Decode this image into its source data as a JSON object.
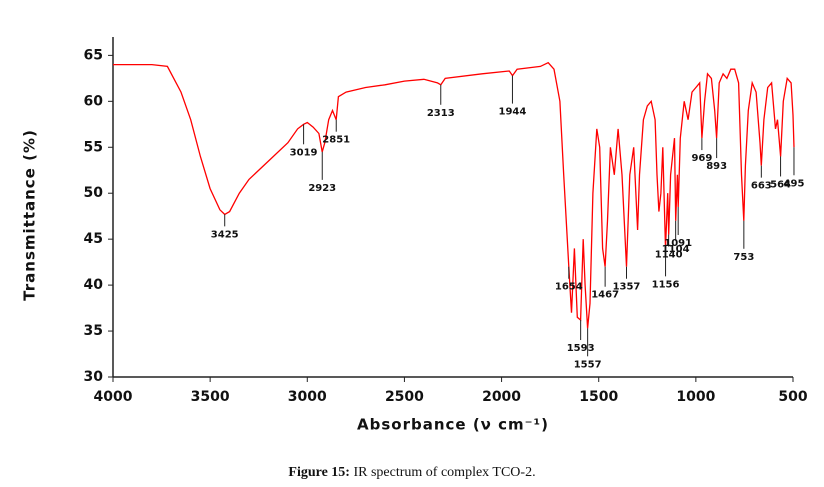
{
  "chart_data": {
    "type": "line",
    "xlabel": "Absorbance (ν cm⁻¹)",
    "ylabel": "Transmittance (%)",
    "caption": {
      "label": "Figure 15:",
      "text": "IR spectrum of complex TCO-2."
    },
    "x": [
      4000,
      3800,
      3720,
      3650,
      3600,
      3550,
      3500,
      3450,
      3425,
      3400,
      3350,
      3300,
      3200,
      3100,
      3050,
      3019,
      3000,
      2970,
      2940,
      2923,
      2910,
      2890,
      2870,
      2851,
      2840,
      2800,
      2700,
      2600,
      2500,
      2400,
      2330,
      2313,
      2290,
      2100,
      1960,
      1944,
      1920,
      1800,
      1760,
      1730,
      1700,
      1680,
      1654,
      1640,
      1625,
      1610,
      1593,
      1580,
      1570,
      1557,
      1545,
      1530,
      1510,
      1495,
      1480,
      1467,
      1455,
      1440,
      1420,
      1400,
      1380,
      1357,
      1340,
      1320,
      1300,
      1290,
      1270,
      1250,
      1230,
      1210,
      1200,
      1190,
      1180,
      1170,
      1156,
      1145,
      1140,
      1130,
      1110,
      1104,
      1095,
      1091,
      1080,
      1060,
      1040,
      1020,
      1000,
      980,
      969,
      955,
      940,
      920,
      903,
      893,
      880,
      860,
      840,
      820,
      800,
      780,
      765,
      753,
      745,
      730,
      710,
      690,
      670,
      663,
      650,
      630,
      610,
      590,
      580,
      564,
      550,
      530,
      510,
      500,
      495
    ],
    "series": [
      {
        "color": "#ff0000",
        "values": [
          64,
          64,
          63.8,
          61,
          58,
          54,
          50.5,
          48.2,
          47.7,
          48,
          50,
          51.5,
          53.5,
          55.5,
          57,
          57.5,
          57.7,
          57.2,
          56.5,
          54.5,
          55.5,
          58,
          59,
          58,
          60.5,
          61,
          61.5,
          61.8,
          62.2,
          62.4,
          62,
          61.8,
          62.5,
          63,
          63.3,
          62.8,
          63.5,
          63.8,
          64.2,
          63.5,
          60,
          52,
          42,
          37,
          44,
          36.5,
          36.2,
          45,
          40,
          35.3,
          38,
          50,
          57,
          55,
          44,
          42,
          47,
          55,
          52,
          57,
          52,
          42,
          52,
          55,
          46,
          52,
          58,
          59.5,
          60,
          58,
          52,
          48,
          50,
          55,
          44,
          50,
          45.5,
          52,
          56,
          47,
          52,
          48.5,
          56,
          60,
          58,
          61,
          61.5,
          62,
          56,
          60,
          63,
          62.5,
          59,
          56,
          62,
          63,
          62.5,
          63.5,
          63.5,
          62,
          52,
          47,
          53,
          59,
          62,
          61,
          55.5,
          53,
          58,
          61.5,
          62,
          57,
          58,
          54,
          60,
          62.5,
          62,
          58.5,
          55
        ]
      }
    ],
    "annotations": [
      {
        "text": "3425",
        "x": 3425,
        "y": 47.7
      },
      {
        "text": "3019",
        "x": 3019,
        "y": 57.5
      },
      {
        "text": "2923",
        "x": 2923,
        "y": 54.5
      },
      {
        "text": "2851",
        "x": 2851,
        "y": 58
      },
      {
        "text": "2313",
        "x": 2313,
        "y": 61.8
      },
      {
        "text": "1944",
        "x": 1944,
        "y": 62.8
      },
      {
        "text": "1654",
        "x": 1654,
        "y": 42
      },
      {
        "text": "1593",
        "x": 1593,
        "y": 36.2
      },
      {
        "text": "1557",
        "x": 1557,
        "y": 35.3
      },
      {
        "text": "1357",
        "x": 1357,
        "y": 42
      },
      {
        "text": "1467",
        "x": 1467,
        "y": 42
      },
      {
        "text": "1156",
        "x": 1156,
        "y": 44
      },
      {
        "text": "1140",
        "x": 1140,
        "y": 45.5
      },
      {
        "text": "1104",
        "x": 1104,
        "y": 47
      },
      {
        "text": "1091",
        "x": 1091,
        "y": 48.5
      },
      {
        "text": "969",
        "x": 969,
        "y": 56
      },
      {
        "text": "893",
        "x": 893,
        "y": 56
      },
      {
        "text": "753",
        "x": 753,
        "y": 47
      },
      {
        "text": "663",
        "x": 663,
        "y": 53
      },
      {
        "text": "564",
        "x": 564,
        "y": 54
      },
      {
        "text": "495",
        "x": 495,
        "y": 55
      }
    ],
    "xlim": [
      4000,
      500
    ],
    "ylim": [
      30,
      67
    ],
    "xticks": [
      4000,
      3500,
      3000,
      2500,
      2000,
      1500,
      1000,
      500
    ],
    "yticks": [
      30,
      35,
      40,
      45,
      50,
      55,
      60,
      65
    ],
    "grid": false
  }
}
